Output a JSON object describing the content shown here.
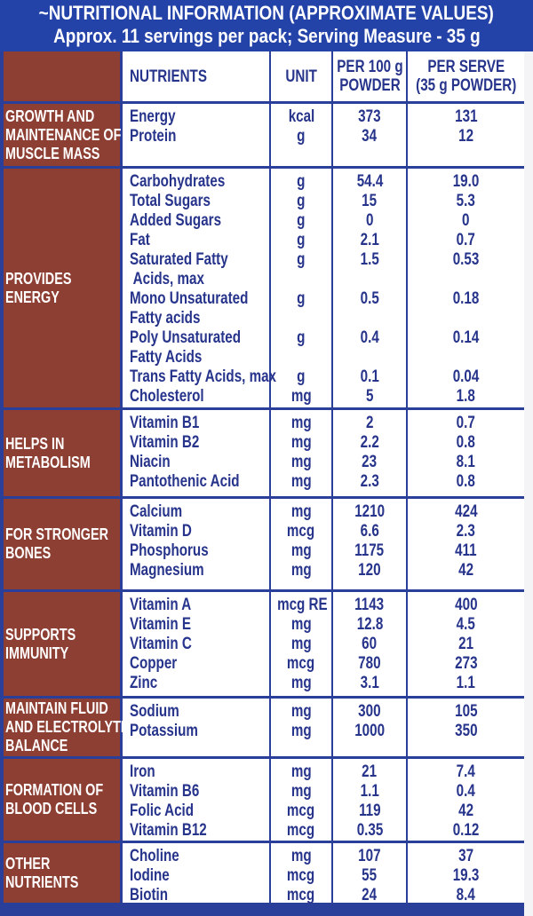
{
  "title": "~NUTRITIONAL INFORMATION (APPROXIMATE VALUES)",
  "subtitle": "Approx. 11 servings per pack; Serving Measure - 35 g",
  "colors": {
    "header_bg": "#2443a8",
    "category_bg": "#8e3f33",
    "text": "#27348b",
    "border": "#2a3f9a"
  },
  "columns": {
    "nutrients": "NUTRIENTS",
    "unit": "UNIT",
    "per100": "PER 100 g\nPOWDER",
    "perserve": "PER SERVE\n(35 g POWDER)"
  },
  "sections": [
    {
      "category": "GROWTH AND\nMAINTENANCE OF\nMUSCLE MASS",
      "rows": [
        {
          "nutrient": "Energy",
          "unit": "kcal",
          "per100": "373",
          "perserve": "131"
        },
        {
          "nutrient": "Protein",
          "unit": "g",
          "per100": "34",
          "perserve": "12"
        }
      ]
    },
    {
      "category": "PROVIDES\nENERGY",
      "rows": [
        {
          "nutrient": "Carbohydrates",
          "unit": "g",
          "per100": "54.4",
          "perserve": "19.0"
        },
        {
          "nutrient": "Total Sugars",
          "unit": "g",
          "per100": "15",
          "perserve": "5.3"
        },
        {
          "nutrient": "Added Sugars",
          "unit": "g",
          "per100": "0",
          "perserve": "0"
        },
        {
          "nutrient": "Fat",
          "unit": "g",
          "per100": "2.1",
          "perserve": "0.7"
        },
        {
          "nutrient": "Saturated Fatty\n Acids, max",
          "unit": "g",
          "per100": "1.5",
          "perserve": "0.53"
        },
        {
          "nutrient": "Mono Unsaturated\nFatty acids",
          "unit": "g",
          "per100": "0.5",
          "perserve": "0.18"
        },
        {
          "nutrient": "Poly Unsaturated\nFatty Acids",
          "unit": "g",
          "per100": "0.4",
          "perserve": "0.14"
        },
        {
          "nutrient": "Trans Fatty Acids, max",
          "unit": "g",
          "per100": "0.1",
          "perserve": "0.04"
        },
        {
          "nutrient": "Cholesterol",
          "unit": "mg",
          "per100": "5",
          "perserve": "1.8"
        }
      ]
    },
    {
      "category": "HELPS IN\nMETABOLISM",
      "rows": [
        {
          "nutrient": "Vitamin B1",
          "unit": "mg",
          "per100": "2",
          "perserve": "0.7"
        },
        {
          "nutrient": "Vitamin B2",
          "unit": "mg",
          "per100": "2.2",
          "perserve": "0.8"
        },
        {
          "nutrient": "Niacin",
          "unit": "mg",
          "per100": "23",
          "perserve": "8.1"
        },
        {
          "nutrient": "Pantothenic Acid",
          "unit": "mg",
          "per100": "2.3",
          "perserve": "0.8"
        }
      ]
    },
    {
      "category": "FOR STRONGER\nBONES",
      "rows": [
        {
          "nutrient": "Calcium",
          "unit": "mg",
          "per100": "1210",
          "perserve": "424"
        },
        {
          "nutrient": "Vitamin D",
          "unit": "mcg",
          "per100": "6.6",
          "perserve": "2.3"
        },
        {
          "nutrient": "Phosphorus",
          "unit": "mg",
          "per100": "1175",
          "perserve": "411"
        },
        {
          "nutrient": "Magnesium",
          "unit": "mg",
          "per100": "120",
          "perserve": "42"
        }
      ]
    },
    {
      "category": "SUPPORTS\nIMMUNITY",
      "rows": [
        {
          "nutrient": "Vitamin A",
          "unit": "mcg RE",
          "per100": "1143",
          "perserve": "400"
        },
        {
          "nutrient": "Vitamin E",
          "unit": "mg",
          "per100": "12.8",
          "perserve": "4.5"
        },
        {
          "nutrient": "Vitamin C",
          "unit": "mg",
          "per100": "60",
          "perserve": "21"
        },
        {
          "nutrient": "Copper",
          "unit": "mcg",
          "per100": "780",
          "perserve": "273"
        },
        {
          "nutrient": "Zinc",
          "unit": "mg",
          "per100": "3.1",
          "perserve": "1.1"
        }
      ]
    },
    {
      "category": "MAINTAIN FLUID\nAND ELECTROLYTE\nBALANCE",
      "rows": [
        {
          "nutrient": "Sodium",
          "unit": "mg",
          "per100": "300",
          "perserve": "105"
        },
        {
          "nutrient": "Potassium",
          "unit": "mg",
          "per100": "1000",
          "perserve": "350"
        }
      ]
    },
    {
      "category": "FORMATION OF\nBLOOD CELLS",
      "rows": [
        {
          "nutrient": "Iron",
          "unit": "mg",
          "per100": "21",
          "perserve": "7.4"
        },
        {
          "nutrient": "Vitamin B6",
          "unit": "mg",
          "per100": "1.1",
          "perserve": "0.4"
        },
        {
          "nutrient": "Folic Acid",
          "unit": "mcg",
          "per100": "119",
          "perserve": "42"
        },
        {
          "nutrient": "Vitamin B12",
          "unit": "mcg",
          "per100": "0.35",
          "perserve": "0.12"
        }
      ]
    },
    {
      "category": "OTHER\nNUTRIENTS",
      "rows": [
        {
          "nutrient": "Choline",
          "unit": "mg",
          "per100": "107",
          "perserve": "37"
        },
        {
          "nutrient": "Iodine",
          "unit": "mcg",
          "per100": "55",
          "perserve": "19.3"
        },
        {
          "nutrient": "Biotin",
          "unit": "mcg",
          "per100": "24",
          "perserve": "8.4"
        }
      ]
    }
  ]
}
